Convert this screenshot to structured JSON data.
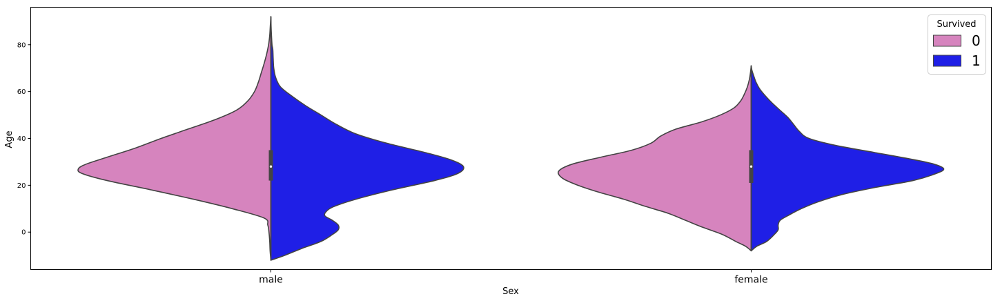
{
  "chart_data": {
    "type": "violin",
    "split": true,
    "title": "",
    "xlabel": "Sex",
    "ylabel": "Age",
    "categories": [
      "male",
      "female"
    ],
    "ylim": [
      -16,
      96
    ],
    "yticks": [
      0,
      20,
      40,
      60,
      80
    ],
    "grid": false,
    "legend": {
      "title": "Survived",
      "placement": "top-right"
    },
    "series": [
      {
        "name": "0",
        "color": "#d684be",
        "side": "left",
        "density": {
          "male": [
            [
              -12,
              0.0
            ],
            [
              -8,
              0.004
            ],
            [
              -4,
              0.006
            ],
            [
              0,
              0.01
            ],
            [
              3,
              0.016
            ],
            [
              6,
              0.035
            ],
            [
              10,
              0.2
            ],
            [
              14,
              0.4
            ],
            [
              18,
              0.62
            ],
            [
              22,
              0.85
            ],
            [
              25,
              0.98
            ],
            [
              27,
              1.0
            ],
            [
              29,
              0.96
            ],
            [
              32,
              0.85
            ],
            [
              36,
              0.7
            ],
            [
              40,
              0.57
            ],
            [
              44,
              0.43
            ],
            [
              48,
              0.29
            ],
            [
              52,
              0.18
            ],
            [
              56,
              0.12
            ],
            [
              60,
              0.085
            ],
            [
              64,
              0.065
            ],
            [
              68,
              0.05
            ],
            [
              72,
              0.035
            ],
            [
              76,
              0.022
            ],
            [
              80,
              0.012
            ],
            [
              84,
              0.006
            ],
            [
              88,
              0.003
            ],
            [
              92,
              0.0
            ]
          ],
          "female": [
            [
              -8,
              0.0
            ],
            [
              -6,
              0.03
            ],
            [
              -4,
              0.08
            ],
            [
              -1,
              0.15
            ],
            [
              2,
              0.25
            ],
            [
              5,
              0.34
            ],
            [
              8,
              0.43
            ],
            [
              11,
              0.55
            ],
            [
              14,
              0.66
            ],
            [
              17,
              0.79
            ],
            [
              20,
              0.9
            ],
            [
              23,
              0.98
            ],
            [
              26,
              1.0
            ],
            [
              29,
              0.93
            ],
            [
              32,
              0.78
            ],
            [
              35,
              0.62
            ],
            [
              38,
              0.52
            ],
            [
              41,
              0.47
            ],
            [
              44,
              0.39
            ],
            [
              47,
              0.26
            ],
            [
              50,
              0.16
            ],
            [
              53,
              0.09
            ],
            [
              56,
              0.055
            ],
            [
              59,
              0.035
            ],
            [
              62,
              0.02
            ],
            [
              65,
              0.01
            ],
            [
              68,
              0.004
            ],
            [
              71,
              0.0
            ]
          ]
        },
        "quartiles": {
          "male": [
            22,
            28,
            35
          ],
          "female": [
            21,
            28,
            35
          ]
        }
      },
      {
        "name": "1",
        "color": "#1f1fe6",
        "side": "right",
        "density": {
          "male": [
            [
              -12,
              0.0
            ],
            [
              -10,
              0.07
            ],
            [
              -7,
              0.16
            ],
            [
              -4,
              0.26
            ],
            [
              -1,
              0.32
            ],
            [
              1,
              0.35
            ],
            [
              3,
              0.35
            ],
            [
              5,
              0.32
            ],
            [
              7,
              0.28
            ],
            [
              9,
              0.29
            ],
            [
              11,
              0.33
            ],
            [
              14,
              0.44
            ],
            [
              18,
              0.63
            ],
            [
              22,
              0.85
            ],
            [
              25,
              0.97
            ],
            [
              28,
              1.0
            ],
            [
              31,
              0.93
            ],
            [
              34,
              0.8
            ],
            [
              38,
              0.6
            ],
            [
              42,
              0.44
            ],
            [
              46,
              0.34
            ],
            [
              50,
              0.26
            ],
            [
              54,
              0.18
            ],
            [
              58,
              0.11
            ],
            [
              62,
              0.05
            ],
            [
              66,
              0.025
            ],
            [
              70,
              0.015
            ],
            [
              74,
              0.012
            ],
            [
              78,
              0.01
            ],
            [
              80,
              0.006
            ],
            [
              84,
              0.003
            ],
            [
              88,
              0.001
            ],
            [
              92,
              0.0
            ]
          ],
          "female": [
            [
              -8,
              0.0
            ],
            [
              -6,
              0.03
            ],
            [
              -4,
              0.08
            ],
            [
              -1,
              0.12
            ],
            [
              1,
              0.14
            ],
            [
              3,
              0.14
            ],
            [
              5,
              0.15
            ],
            [
              7,
              0.19
            ],
            [
              10,
              0.26
            ],
            [
              13,
              0.35
            ],
            [
              16,
              0.47
            ],
            [
              19,
              0.64
            ],
            [
              22,
              0.84
            ],
            [
              25,
              0.96
            ],
            [
              27,
              1.0
            ],
            [
              29,
              0.95
            ],
            [
              31,
              0.84
            ],
            [
              34,
              0.64
            ],
            [
              37,
              0.44
            ],
            [
              40,
              0.3
            ],
            [
              43,
              0.25
            ],
            [
              46,
              0.22
            ],
            [
              49,
              0.19
            ],
            [
              52,
              0.15
            ],
            [
              55,
              0.11
            ],
            [
              58,
              0.075
            ],
            [
              61,
              0.045
            ],
            [
              64,
              0.025
            ],
            [
              67,
              0.012
            ],
            [
              69,
              0.004
            ],
            [
              71,
              0.0
            ]
          ]
        }
      }
    ]
  }
}
